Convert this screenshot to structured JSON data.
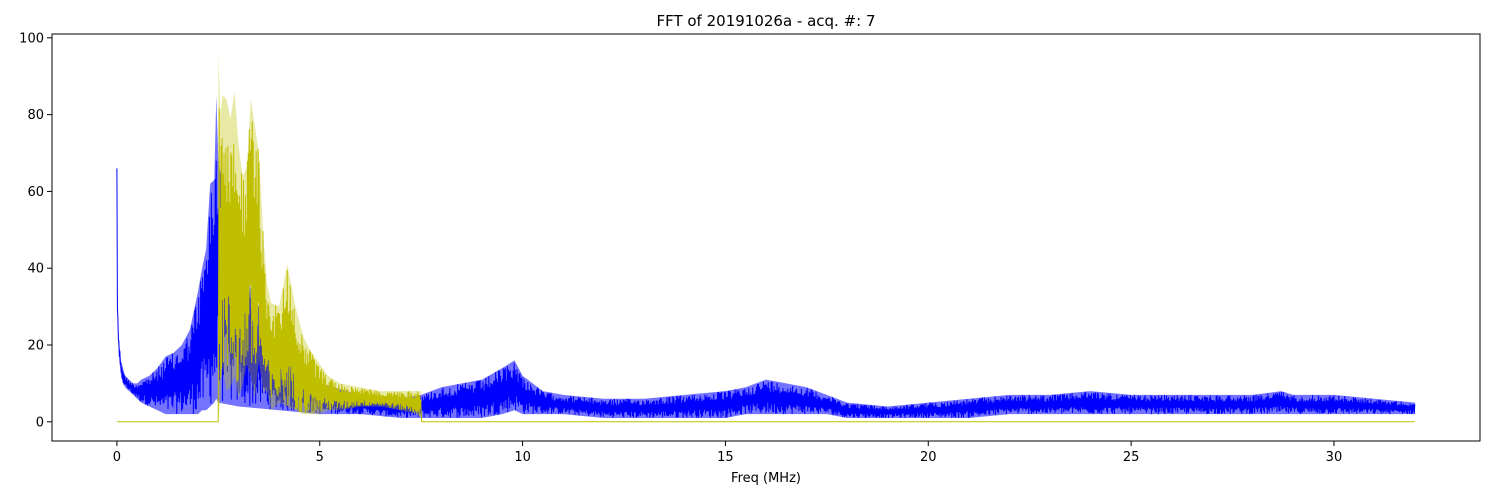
{
  "chart_data": {
    "type": "line",
    "title": "FFT of 20191026a - acq. #: 7",
    "xlabel": "Freq (MHz)",
    "ylabel": "",
    "xlim": [
      -1.6,
      33.6
    ],
    "ylim": [
      -5,
      101
    ],
    "xticks": [
      0,
      5,
      10,
      15,
      20,
      25,
      30
    ],
    "yticks": [
      0,
      20,
      40,
      60,
      80,
      100
    ],
    "grid": false,
    "legend": "none",
    "series": [
      {
        "color": "#0000ff",
        "x": [
          0.0,
          0.01,
          0.03,
          0.06,
          0.1,
          0.15,
          0.2,
          0.3,
          0.4,
          0.5,
          0.6,
          0.8,
          1.0,
          1.2,
          1.4,
          1.6,
          1.8,
          2.0,
          2.1,
          2.2,
          2.3,
          2.4,
          2.45,
          2.5,
          3.0,
          4.0,
          5.0,
          6.0,
          7.0,
          7.5,
          8.0,
          8.5,
          9.0,
          9.5,
          9.8,
          10.0,
          10.5,
          11.0,
          12.0,
          13.0,
          14.0,
          15.0,
          15.5,
          16.0,
          16.5,
          17.0,
          17.5,
          18.0,
          19.0,
          20.0,
          21.0,
          22.0,
          23.0,
          24.0,
          25.0,
          26.0,
          27.0,
          28.0,
          28.7,
          29.0,
          30.0,
          31.0,
          32.0
        ],
        "upper": [
          66,
          36,
          25,
          20,
          16,
          14,
          12,
          11,
          10,
          10,
          11,
          12,
          14,
          17,
          18,
          20,
          24,
          34,
          40,
          45,
          62,
          63,
          85,
          68,
          42,
          18,
          10,
          7,
          6,
          7,
          9,
          10,
          11,
          14,
          16,
          12,
          8,
          7,
          6,
          6,
          7,
          8,
          9,
          11,
          10,
          9,
          7,
          5,
          4,
          5,
          6,
          7,
          7,
          8,
          7,
          7,
          7,
          7,
          8,
          7,
          7,
          6,
          5
        ],
        "lower": [
          66,
          30,
          21,
          16,
          12,
          10,
          9,
          8,
          7,
          6,
          5,
          4,
          3,
          2,
          2,
          2,
          2,
          2,
          3,
          3,
          4,
          5,
          6,
          5,
          4,
          3,
          2,
          2,
          1,
          1,
          1,
          1,
          1,
          2,
          3,
          2,
          2,
          2,
          1,
          1,
          1,
          1,
          2,
          2,
          2,
          2,
          2,
          1,
          1,
          1,
          1,
          2,
          2,
          2,
          2,
          2,
          2,
          2,
          2,
          2,
          2,
          2,
          2
        ]
      },
      {
        "color": "#bfbf00",
        "x": [
          0.0,
          2.5,
          2.5,
          2.55,
          2.6,
          2.7,
          2.8,
          2.9,
          3.0,
          3.1,
          3.2,
          3.3,
          3.4,
          3.5,
          3.6,
          3.7,
          3.8,
          4.0,
          4.2,
          4.4,
          4.6,
          4.8,
          5.0,
          5.2,
          5.5,
          6.0,
          6.5,
          7.0,
          7.4,
          7.5,
          7.5,
          32.0
        ],
        "upper": [
          0,
          0,
          96,
          80,
          85,
          84,
          79,
          86,
          72,
          64,
          66,
          84,
          77,
          70,
          50,
          36,
          31,
          30,
          41,
          30,
          22,
          18,
          15,
          12,
          10,
          9,
          8,
          8,
          8,
          8,
          0,
          0
        ],
        "lower": [
          0,
          0,
          0,
          6,
          15,
          8,
          9,
          12,
          6,
          10,
          15,
          12,
          6,
          16,
          8,
          8,
          3,
          5,
          4,
          3,
          2,
          2,
          2,
          3,
          3,
          4,
          4,
          3,
          2,
          1,
          0,
          0
        ]
      }
    ]
  }
}
